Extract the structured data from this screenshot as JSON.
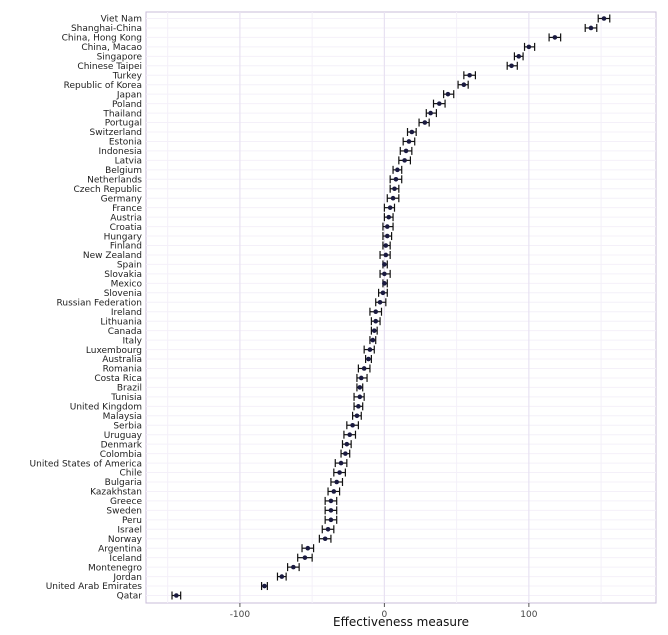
{
  "chart_data": {
    "type": "dot-errorbar",
    "xlabel": "Effectiveness measure",
    "xlim": [
      -165,
      188
    ],
    "xticks": [
      -100,
      0,
      100
    ],
    "grid": true,
    "legend": "none",
    "colors": {
      "point": "#1a1a40",
      "bar": "#111111",
      "grid_major": "#e8e2f2",
      "grid_minor": "#f4f0f9",
      "panel_border": "#c8bcd8"
    },
    "series": [
      {
        "name": "Viet Nam",
        "value": 152,
        "low": 148,
        "high": 156
      },
      {
        "name": "Shanghai-China",
        "value": 143,
        "low": 139,
        "high": 147
      },
      {
        "name": "China, Hong Kong",
        "value": 118,
        "low": 114,
        "high": 122
      },
      {
        "name": "China, Macao",
        "value": 100,
        "low": 97,
        "high": 104
      },
      {
        "name": "Singapore",
        "value": 93,
        "low": 90,
        "high": 96
      },
      {
        "name": "Chinese Taipei",
        "value": 88,
        "low": 85,
        "high": 92
      },
      {
        "name": "Turkey",
        "value": 59,
        "low": 55,
        "high": 63
      },
      {
        "name": "Republic of Korea",
        "value": 55,
        "low": 51,
        "high": 58
      },
      {
        "name": "Japan",
        "value": 44,
        "low": 41,
        "high": 48
      },
      {
        "name": "Poland",
        "value": 38,
        "low": 34,
        "high": 42
      },
      {
        "name": "Thailand",
        "value": 32,
        "low": 29,
        "high": 36
      },
      {
        "name": "Portugal",
        "value": 28,
        "low": 24,
        "high": 31
      },
      {
        "name": "Switzerland",
        "value": 19,
        "low": 16,
        "high": 22
      },
      {
        "name": "Estonia",
        "value": 17,
        "low": 13,
        "high": 21
      },
      {
        "name": "Indonesia",
        "value": 15,
        "low": 11,
        "high": 19
      },
      {
        "name": "Latvia",
        "value": 14,
        "low": 10,
        "high": 18
      },
      {
        "name": "Belgium",
        "value": 9,
        "low": 6,
        "high": 12
      },
      {
        "name": "Netherlands",
        "value": 8,
        "low": 4,
        "high": 12
      },
      {
        "name": "Czech Republic",
        "value": 7,
        "low": 4,
        "high": 10
      },
      {
        "name": "Germany",
        "value": 6,
        "low": 2,
        "high": 10
      },
      {
        "name": "France",
        "value": 4,
        "low": 0,
        "high": 7
      },
      {
        "name": "Austria",
        "value": 3,
        "low": 0,
        "high": 6
      },
      {
        "name": "Croatia",
        "value": 2,
        "low": -1,
        "high": 6
      },
      {
        "name": "Hungary",
        "value": 2,
        "low": -1,
        "high": 5
      },
      {
        "name": "Finland",
        "value": 1,
        "low": -1,
        "high": 4
      },
      {
        "name": "New Zealand",
        "value": 1,
        "low": -3,
        "high": 4
      },
      {
        "name": "Spain",
        "value": 0,
        "low": -1,
        "high": 2
      },
      {
        "name": "Slovakia",
        "value": 0,
        "low": -3,
        "high": 4
      },
      {
        "name": "Mexico",
        "value": 0,
        "low": -1,
        "high": 2
      },
      {
        "name": "Slovenia",
        "value": -1,
        "low": -4,
        "high": 2
      },
      {
        "name": "Russian Federation",
        "value": -3,
        "low": -6,
        "high": 1
      },
      {
        "name": "Ireland",
        "value": -6,
        "low": -10,
        "high": -2
      },
      {
        "name": "Lithuania",
        "value": -6,
        "low": -9,
        "high": -3
      },
      {
        "name": "Canada",
        "value": -7,
        "low": -9,
        "high": -5
      },
      {
        "name": "Italy",
        "value": -8,
        "low": -10,
        "high": -6
      },
      {
        "name": "Luxembourg",
        "value": -10,
        "low": -14,
        "high": -7
      },
      {
        "name": "Australia",
        "value": -11,
        "low": -13,
        "high": -9
      },
      {
        "name": "Romania",
        "value": -14,
        "low": -18,
        "high": -10
      },
      {
        "name": "Costa Rica",
        "value": -16,
        "low": -19,
        "high": -12
      },
      {
        "name": "Brazil",
        "value": -17,
        "low": -19,
        "high": -15
      },
      {
        "name": "Tunisia",
        "value": -17,
        "low": -21,
        "high": -14
      },
      {
        "name": "United Kingdom",
        "value": -18,
        "low": -21,
        "high": -15
      },
      {
        "name": "Malaysia",
        "value": -19,
        "low": -22,
        "high": -16
      },
      {
        "name": "Serbia",
        "value": -22,
        "low": -26,
        "high": -18
      },
      {
        "name": "Uruguay",
        "value": -24,
        "low": -28,
        "high": -20
      },
      {
        "name": "Denmark",
        "value": -26,
        "low": -29,
        "high": -23
      },
      {
        "name": "Colombia",
        "value": -27,
        "low": -30,
        "high": -24
      },
      {
        "name": "United States of America",
        "value": -30,
        "low": -34,
        "high": -26
      },
      {
        "name": "Chile",
        "value": -31,
        "low": -35,
        "high": -27
      },
      {
        "name": "Bulgaria",
        "value": -33,
        "low": -37,
        "high": -29
      },
      {
        "name": "Kazakhstan",
        "value": -35,
        "low": -39,
        "high": -31
      },
      {
        "name": "Greece",
        "value": -37,
        "low": -41,
        "high": -33
      },
      {
        "name": "Sweden",
        "value": -37,
        "low": -41,
        "high": -33
      },
      {
        "name": "Peru",
        "value": -37,
        "low": -41,
        "high": -33
      },
      {
        "name": "Israel",
        "value": -39,
        "low": -43,
        "high": -35
      },
      {
        "name": "Norway",
        "value": -41,
        "low": -45,
        "high": -37
      },
      {
        "name": "Argentina",
        "value": -53,
        "low": -57,
        "high": -49
      },
      {
        "name": "Iceland",
        "value": -55,
        "low": -60,
        "high": -50
      },
      {
        "name": "Montenegro",
        "value": -63,
        "low": -67,
        "high": -59
      },
      {
        "name": "Jordan",
        "value": -71,
        "low": -74,
        "high": -68
      },
      {
        "name": "United Arab Emirates",
        "value": -83,
        "low": -85,
        "high": -81
      },
      {
        "name": "Qatar",
        "value": -144,
        "low": -147,
        "high": -141
      }
    ]
  }
}
